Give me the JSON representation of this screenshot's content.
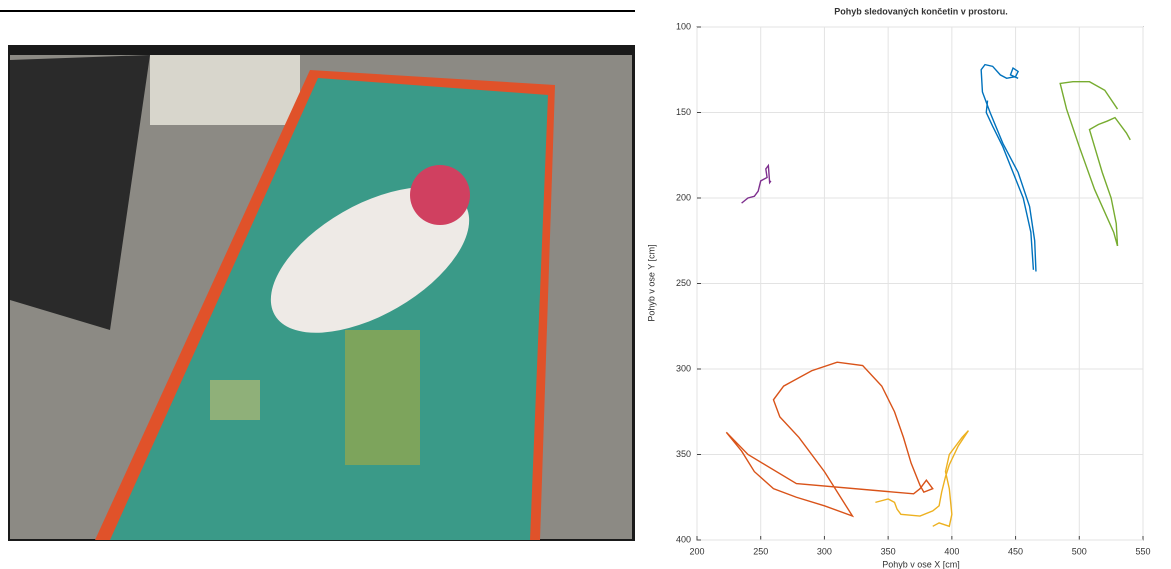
{
  "chart_data": {
    "type": "line",
    "title": "Pohyb sledovaných končetin v prostoru.",
    "xlabel": "Pohyb v ose X [cm]",
    "ylabel": "Pohyb v ose Y [cm]",
    "xlim": [
      200,
      550
    ],
    "xticks": [
      200,
      250,
      300,
      350,
      400,
      450,
      500,
      550
    ],
    "ylim": [
      100,
      400
    ],
    "yticks": [
      100,
      150,
      200,
      250,
      300,
      350,
      400
    ],
    "y_reversed": true,
    "grid": true,
    "series": [
      {
        "color": "#0072bd",
        "x": [
          466,
          465,
          461,
          452,
          440,
          430,
          424,
          423,
          426,
          432,
          438,
          443,
          450,
          452,
          448,
          446,
          452
        ],
        "values": [
          243,
          225,
          205,
          185,
          168,
          150,
          138,
          125,
          122,
          123,
          128,
          130,
          129,
          126,
          124,
          128,
          130
        ]
      },
      {
        "color": "#0072bd",
        "x": [
          428,
          427,
          432,
          440,
          448,
          456,
          462,
          464
        ],
        "values": [
          143,
          150,
          158,
          170,
          185,
          200,
          220,
          242
        ]
      },
      {
        "color": "#77ac30",
        "x": [
          530,
          529,
          525,
          518,
          512,
          508,
          515,
          522,
          528,
          537,
          540
        ],
        "values": [
          228,
          215,
          200,
          185,
          170,
          160,
          157,
          155,
          153,
          162,
          166
        ]
      },
      {
        "color": "#77ac30",
        "x": [
          530,
          520,
          508,
          495,
          485,
          490,
          500,
          512,
          527,
          530
        ],
        "values": [
          148,
          137,
          132,
          132,
          133,
          148,
          170,
          195,
          220,
          228
        ]
      },
      {
        "color": "#7e2f8e",
        "x": [
          235,
          240,
          245,
          248,
          250,
          255,
          254,
          256,
          257,
          258
        ],
        "values": [
          203,
          200,
          199,
          196,
          190,
          188,
          183,
          181,
          191,
          190
        ]
      },
      {
        "color": "#d95319",
        "x": [
          223,
          235,
          245,
          260,
          278,
          300,
          322,
          300,
          280,
          265,
          260,
          268,
          290,
          310,
          330,
          345,
          355,
          362,
          368,
          375,
          378,
          385,
          380,
          375,
          370,
          278,
          240,
          223
        ],
        "values": [
          337,
          348,
          360,
          370,
          375,
          380,
          386,
          360,
          340,
          328,
          318,
          310,
          301,
          296,
          298,
          310,
          325,
          340,
          355,
          368,
          372,
          370,
          365,
          370,
          373,
          367,
          350,
          337
        ]
      },
      {
        "color": "#edb120",
        "x": [
          340,
          350,
          355,
          357,
          360,
          375,
          385,
          390,
          392,
          395,
          398,
          405,
          413,
          408,
          398,
          395,
          398,
          400,
          398,
          390,
          385
        ],
        "values": [
          378,
          376,
          378,
          382,
          385,
          386,
          383,
          380,
          372,
          363,
          356,
          345,
          336,
          340,
          350,
          360,
          370,
          385,
          392,
          390,
          392
        ]
      }
    ]
  }
}
